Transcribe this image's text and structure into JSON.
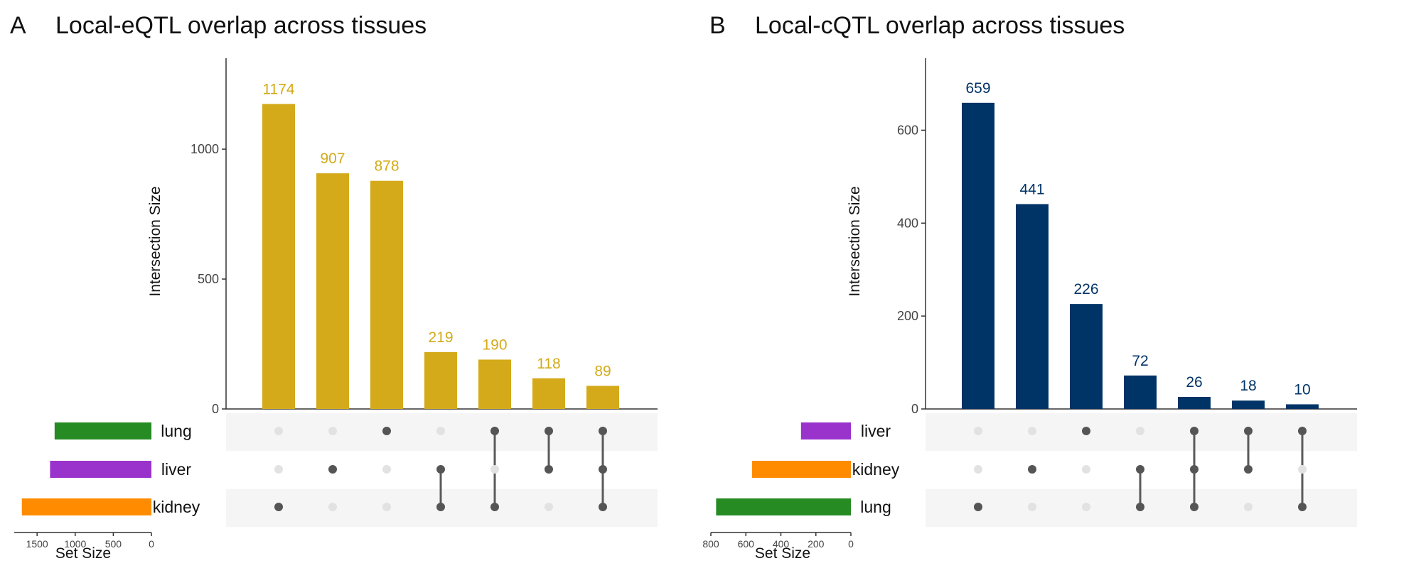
{
  "panels": [
    {
      "letter": "A",
      "title": "Local-eQTL overlap across tissues",
      "chart_data": {
        "type": "bar",
        "subtype": "upset",
        "ylabel": "Intersection Size",
        "ylim": [
          0,
          1350
        ],
        "yticks": [
          0,
          500,
          1000
        ],
        "values": [
          1174,
          907,
          878,
          219,
          190,
          118,
          89
        ],
        "bar_color": "#d4aa1a",
        "sets": [
          "lung",
          "liver",
          "kidney"
        ],
        "set_colors": [
          "#258b22",
          "#9a33cc",
          "#ff8c00"
        ],
        "set_sizes": [
          1270,
          1330,
          1700
        ],
        "set_size_label": "Set Size",
        "set_size_ticks": [
          1500,
          1000,
          500,
          0
        ],
        "set_size_max": 1800,
        "combinations": [
          [
            "kidney"
          ],
          [
            "liver"
          ],
          [
            "lung"
          ],
          [
            "liver",
            "kidney"
          ],
          [
            "lung",
            "kidney"
          ],
          [
            "lung",
            "liver"
          ],
          [
            "lung",
            "liver",
            "kidney"
          ]
        ]
      }
    },
    {
      "letter": "B",
      "title": "Local-cQTL overlap across tissues",
      "chart_data": {
        "type": "bar",
        "subtype": "upset",
        "ylabel": "Intersection Size",
        "ylim": [
          0,
          755
        ],
        "yticks": [
          0,
          200,
          400,
          600
        ],
        "values": [
          659,
          441,
          226,
          72,
          26,
          18,
          10
        ],
        "bar_color": "#003366",
        "sets": [
          "liver",
          "kidney",
          "lung"
        ],
        "set_colors": [
          "#9a33cc",
          "#ff8c00",
          "#258b22"
        ],
        "set_sizes": [
          285,
          565,
          770
        ],
        "set_size_label": "Set Size",
        "set_size_ticks": [
          800,
          600,
          400,
          200,
          0
        ],
        "set_size_max": 800,
        "combinations": [
          [
            "lung"
          ],
          [
            "kidney"
          ],
          [
            "liver"
          ],
          [
            "kidney",
            "lung"
          ],
          [
            "liver",
            "kidney",
            "lung"
          ],
          [
            "liver",
            "kidney"
          ],
          [
            "liver",
            "lung"
          ]
        ]
      }
    }
  ]
}
